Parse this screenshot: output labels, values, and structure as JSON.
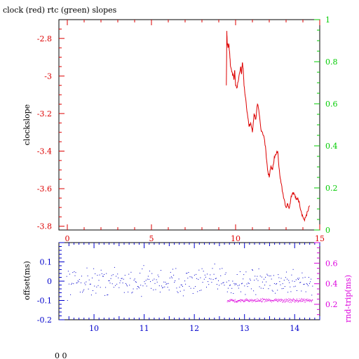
{
  "title": "clock (red) rtc (green) slopes",
  "footer_text": "0 0",
  "colors": {
    "red": "#dd0000",
    "green": "#00cc00",
    "blue": "#0000cc",
    "magenta": "#dd00dd",
    "black": "#000000"
  },
  "chart_data": [
    {
      "type": "line",
      "title": "clock (red) rtc (green) slopes",
      "xlim": [
        -0.5,
        15
      ],
      "x_ticks": [
        "0",
        "5",
        "10",
        "15"
      ],
      "x_tick_values": [
        0,
        5,
        10,
        15
      ],
      "ylabel_left": "clockslope",
      "ylim_left": [
        -3.82,
        -2.7
      ],
      "y_ticks_left": [
        "-2.8",
        "-3",
        "-3.2",
        "-3.4",
        "-3.6",
        "-3.8"
      ],
      "y_tick_values_left": [
        -2.8,
        -3.0,
        -3.2,
        -3.4,
        -3.6,
        -3.8
      ],
      "ylim_right": [
        0,
        1
      ],
      "y_ticks_right": [
        "0",
        "0.2",
        "0.4",
        "0.6",
        "0.8",
        "1"
      ],
      "y_tick_values_right": [
        0,
        0.2,
        0.4,
        0.6,
        0.8,
        1
      ],
      "grid": false,
      "series": [
        {
          "color": "#dd0000",
          "x": [
            9.45,
            9.48,
            9.5,
            9.55,
            9.6,
            9.65,
            9.7,
            9.8,
            9.9,
            9.95,
            10.0,
            10.1,
            10.2,
            10.3,
            10.35,
            10.4,
            10.45,
            10.5,
            10.6,
            10.7,
            10.8,
            10.9,
            11.0,
            11.1,
            11.2,
            11.3,
            11.4,
            11.5,
            11.6,
            11.7,
            11.8,
            11.9,
            12.0,
            12.1,
            12.2,
            12.3,
            12.4,
            12.5,
            12.6,
            12.7,
            12.8,
            12.9,
            13.0,
            13.1,
            13.2,
            13.3,
            13.4,
            13.5,
            13.6,
            13.7,
            13.8,
            13.9,
            14.0,
            14.1,
            14.2,
            14.3,
            14.4
          ],
          "y": [
            -3.05,
            -2.76,
            -2.82,
            -2.85,
            -2.83,
            -2.88,
            -2.95,
            -2.98,
            -3.02,
            -2.97,
            -3.05,
            -3.06,
            -3.0,
            -2.95,
            -2.99,
            -2.93,
            -2.96,
            -3.05,
            -3.12,
            -3.2,
            -3.27,
            -3.25,
            -3.3,
            -3.2,
            -3.23,
            -3.15,
            -3.2,
            -3.28,
            -3.3,
            -3.33,
            -3.4,
            -3.5,
            -3.54,
            -3.48,
            -3.5,
            -3.43,
            -3.42,
            -3.4,
            -3.5,
            -3.57,
            -3.62,
            -3.66,
            -3.7,
            -3.68,
            -3.7,
            -3.64,
            -3.62,
            -3.63,
            -3.66,
            -3.65,
            -3.68,
            -3.72,
            -3.75,
            -3.77,
            -3.74,
            -3.72,
            -3.69
          ]
        }
      ]
    },
    {
      "type": "scatter",
      "xlim": [
        9.3,
        14.5
      ],
      "x_ticks": [
        "10",
        "11",
        "12",
        "13",
        "14"
      ],
      "x_tick_values": [
        10,
        11,
        12,
        13,
        14
      ],
      "ylabel_left": "offset(ms)",
      "ylim_left": [
        -0.2,
        0.2
      ],
      "y_ticks_left": [
        "0.1",
        "0",
        "-0.1",
        "-0.2"
      ],
      "y_tick_values_left": [
        0.1,
        0.0,
        -0.1,
        -0.2
      ],
      "ylabel_right": "rnd-trip(ms)",
      "ylim_right": [
        0.05,
        0.8
      ],
      "y_ticks_right": [
        "0.6",
        "0.4",
        "0.2"
      ],
      "y_tick_values_right": [
        0.6,
        0.4,
        0.2
      ],
      "grid": false,
      "series": [
        {
          "color": "#0000cc",
          "axis": "left",
          "x_range": [
            9.45,
            14.35
          ],
          "center": 0.0,
          "spread": 0.035,
          "count": 330
        },
        {
          "color": "#dd00dd",
          "axis": "right",
          "x_range": [
            12.65,
            14.35
          ],
          "center": 0.24,
          "spread": 0.008,
          "count": 240
        }
      ]
    }
  ]
}
